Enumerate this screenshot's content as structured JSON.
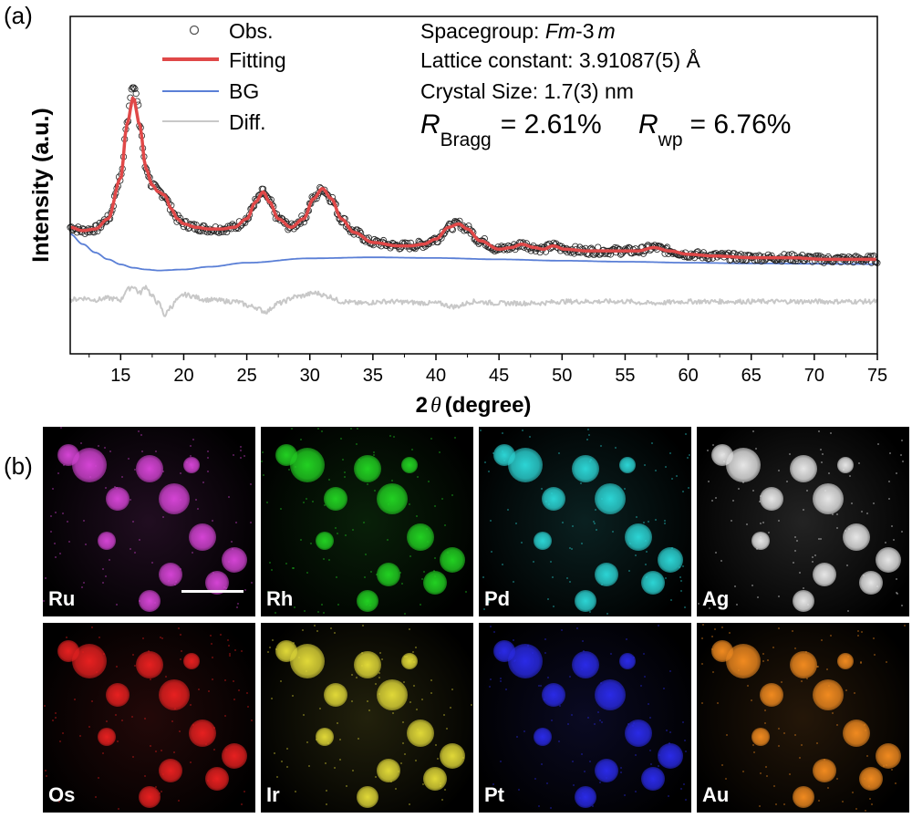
{
  "panel_a_label": "(a)",
  "panel_b_label": "(b)",
  "chart_data": {
    "type": "line",
    "title": "",
    "xlabel_main": "2",
    "xlabel_theta": "θ",
    "xlabel_unit": "(degree)",
    "ylabel": "Intensity (a.u.)",
    "xlim": [
      11,
      75
    ],
    "xticks": [
      15,
      20,
      25,
      30,
      35,
      40,
      45,
      50,
      55,
      60,
      65,
      70,
      75
    ],
    "yticks_visible": false,
    "ylim": [
      0,
      100
    ],
    "legend_position": "top-left",
    "legend": [
      {
        "label": "Obs.",
        "style": "open-circle",
        "color": "#555555"
      },
      {
        "label": "Fitting",
        "style": "line",
        "color": "#e04848"
      },
      {
        "label": "BG",
        "style": "line",
        "color": "#5a7fd6"
      },
      {
        "label": "Diff.",
        "style": "line",
        "color": "#c8c8c8"
      }
    ],
    "annotations": {
      "spacegroup_prefix": "Spacegroup: ",
      "spacegroup_italic": "Fm",
      "spacegroup_mid": "-3",
      "spacegroup_italic2": "m",
      "lattice": "Lattice constant: 3.91087(5) Å",
      "crystal": "Crystal Size: 1.7(3) nm",
      "r_symbol": "R",
      "r_bragg_sub": "Bragg",
      "r_bragg_value": "= 2.61%",
      "r_wp_sub": "wp",
      "r_wp_value": "= 6.76%"
    },
    "peaks_description_units": "2θ degrees / relative intensity",
    "series": [
      {
        "name": "Fitting",
        "color": "#e04848",
        "x": [
          11,
          12,
          13,
          14,
          15,
          15.5,
          16,
          16.5,
          17,
          17.5,
          18,
          18.5,
          19,
          19.5,
          20,
          21,
          22,
          23,
          24,
          25,
          25.7,
          26.3,
          26.8,
          27.5,
          28.5,
          29.5,
          30.3,
          31,
          31.7,
          32.5,
          33.5,
          35,
          37,
          38,
          39,
          40,
          41,
          41.8,
          42.5,
          43.5,
          45,
          46,
          46.8,
          47.8,
          48.5,
          49.3,
          50.2,
          52,
          54,
          56,
          57.3,
          58.5,
          60,
          62,
          65,
          68,
          71,
          75
        ],
        "y": [
          37.5,
          36.5,
          37,
          40,
          52,
          68,
          76,
          68,
          55,
          50,
          48,
          47,
          43,
          40,
          38.5,
          37.5,
          37,
          37,
          37.5,
          40,
          45,
          48,
          45,
          40,
          37.5,
          40,
          46,
          49,
          46,
          40,
          36,
          33,
          32,
          32,
          32.5,
          34,
          37.5,
          38.5,
          37,
          33.5,
          31,
          31.5,
          32.5,
          31.5,
          31,
          32,
          31,
          30.5,
          30.5,
          30.5,
          31.5,
          30.5,
          29.5,
          29,
          28.5,
          28.5,
          28,
          28
        ]
      },
      {
        "name": "BG",
        "color": "#5a7fd6",
        "x": [
          11,
          12,
          13,
          14,
          15,
          16,
          17,
          18,
          20,
          22,
          25,
          30,
          35,
          40,
          45,
          50,
          55,
          60,
          65,
          70,
          75
        ],
        "y": [
          35.5,
          32.5,
          30,
          28,
          26.5,
          25.5,
          25,
          24.7,
          25,
          25.8,
          27,
          28.3,
          28.6,
          28.4,
          28,
          27.6,
          27.3,
          27,
          26.8,
          26.7,
          26.6
        ]
      },
      {
        "name": "Diff.",
        "color": "#c8c8c8",
        "x": [
          11,
          12,
          13,
          14,
          15,
          15.5,
          16,
          16.5,
          17,
          17.5,
          18,
          18.5,
          19,
          19.5,
          20,
          22,
          24,
          25.5,
          26.5,
          27.5,
          29,
          30.5,
          31.5,
          32.5,
          34,
          36,
          40,
          41.5,
          43,
          45,
          48,
          50,
          55,
          57,
          60,
          65,
          70,
          75
        ],
        "y": [
          16,
          16.5,
          16,
          16.5,
          16,
          19,
          20,
          18,
          20,
          17,
          15,
          11.5,
          14,
          16,
          17.5,
          16,
          15.5,
          14,
          12.5,
          15,
          17,
          18,
          17,
          15.5,
          15,
          15.5,
          15,
          14,
          15.5,
          15,
          15,
          15.5,
          15.5,
          15,
          15.5,
          15.5,
          15.5,
          15.5
        ]
      }
    ]
  },
  "maps": {
    "row1": [
      {
        "element": "Ru",
        "color": "#d444d4",
        "scalebar": true
      },
      {
        "element": "Rh",
        "color": "#22d022",
        "scalebar": false
      },
      {
        "element": "Pd",
        "color": "#2cd4d4",
        "scalebar": false
      },
      {
        "element": "Ag",
        "color": "#e6e6e6",
        "scalebar": false
      }
    ],
    "row2": [
      {
        "element": "Os",
        "color": "#e62020",
        "scalebar": false
      },
      {
        "element": "Ir",
        "color": "#e0d838",
        "scalebar": false
      },
      {
        "element": "Pt",
        "color": "#2a2ae6",
        "scalebar": false
      },
      {
        "element": "Au",
        "color": "#f08a20",
        "scalebar": false
      }
    ]
  }
}
